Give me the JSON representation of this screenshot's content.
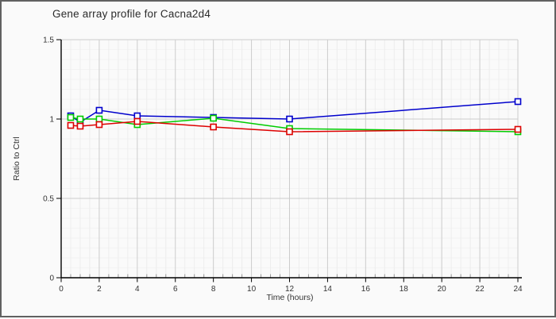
{
  "chart_data": {
    "type": "line",
    "title": "Gene array profile for Cacna2d4",
    "xlabel": "Time (hours)",
    "ylabel": "Ratio to Ctrl",
    "x": [
      0.5,
      1,
      2,
      4,
      8,
      12,
      24
    ],
    "series": [
      {
        "name": "series-blue",
        "color": "#0000cc",
        "values": [
          1.02,
          0.98,
          1.055,
          1.02,
          1.01,
          1.0,
          1.11
        ]
      },
      {
        "name": "series-green",
        "color": "#00cc00",
        "values": [
          1.01,
          1.0,
          1.0,
          0.965,
          1.005,
          0.94,
          0.92
        ]
      },
      {
        "name": "series-red",
        "color": "#dd0000",
        "values": [
          0.96,
          0.955,
          0.965,
          0.985,
          0.95,
          0.92,
          0.935
        ]
      }
    ],
    "xlim": [
      0,
      24
    ],
    "ylim": [
      0,
      1.5
    ],
    "xticks": [
      0,
      2,
      4,
      6,
      8,
      10,
      12,
      14,
      16,
      18,
      20,
      22,
      24
    ],
    "yticks": [
      0,
      0.5,
      1,
      1.5
    ],
    "ytick_labels": [
      "0",
      "0.5",
      "1",
      "1.5"
    ],
    "minor_x_step": 0.5,
    "minor_y_step": 0.0625,
    "grid": true,
    "legend": "none",
    "marker": "open-square"
  },
  "colors": {
    "background": "#fafafa",
    "frame_border": "#616161",
    "axis": "#000000",
    "grid_major": "#cccccc",
    "grid_minor_v": "#ededed",
    "grid_minor_h": "#f3f3f3",
    "tick_minor": "#999999",
    "text": "#333333"
  }
}
